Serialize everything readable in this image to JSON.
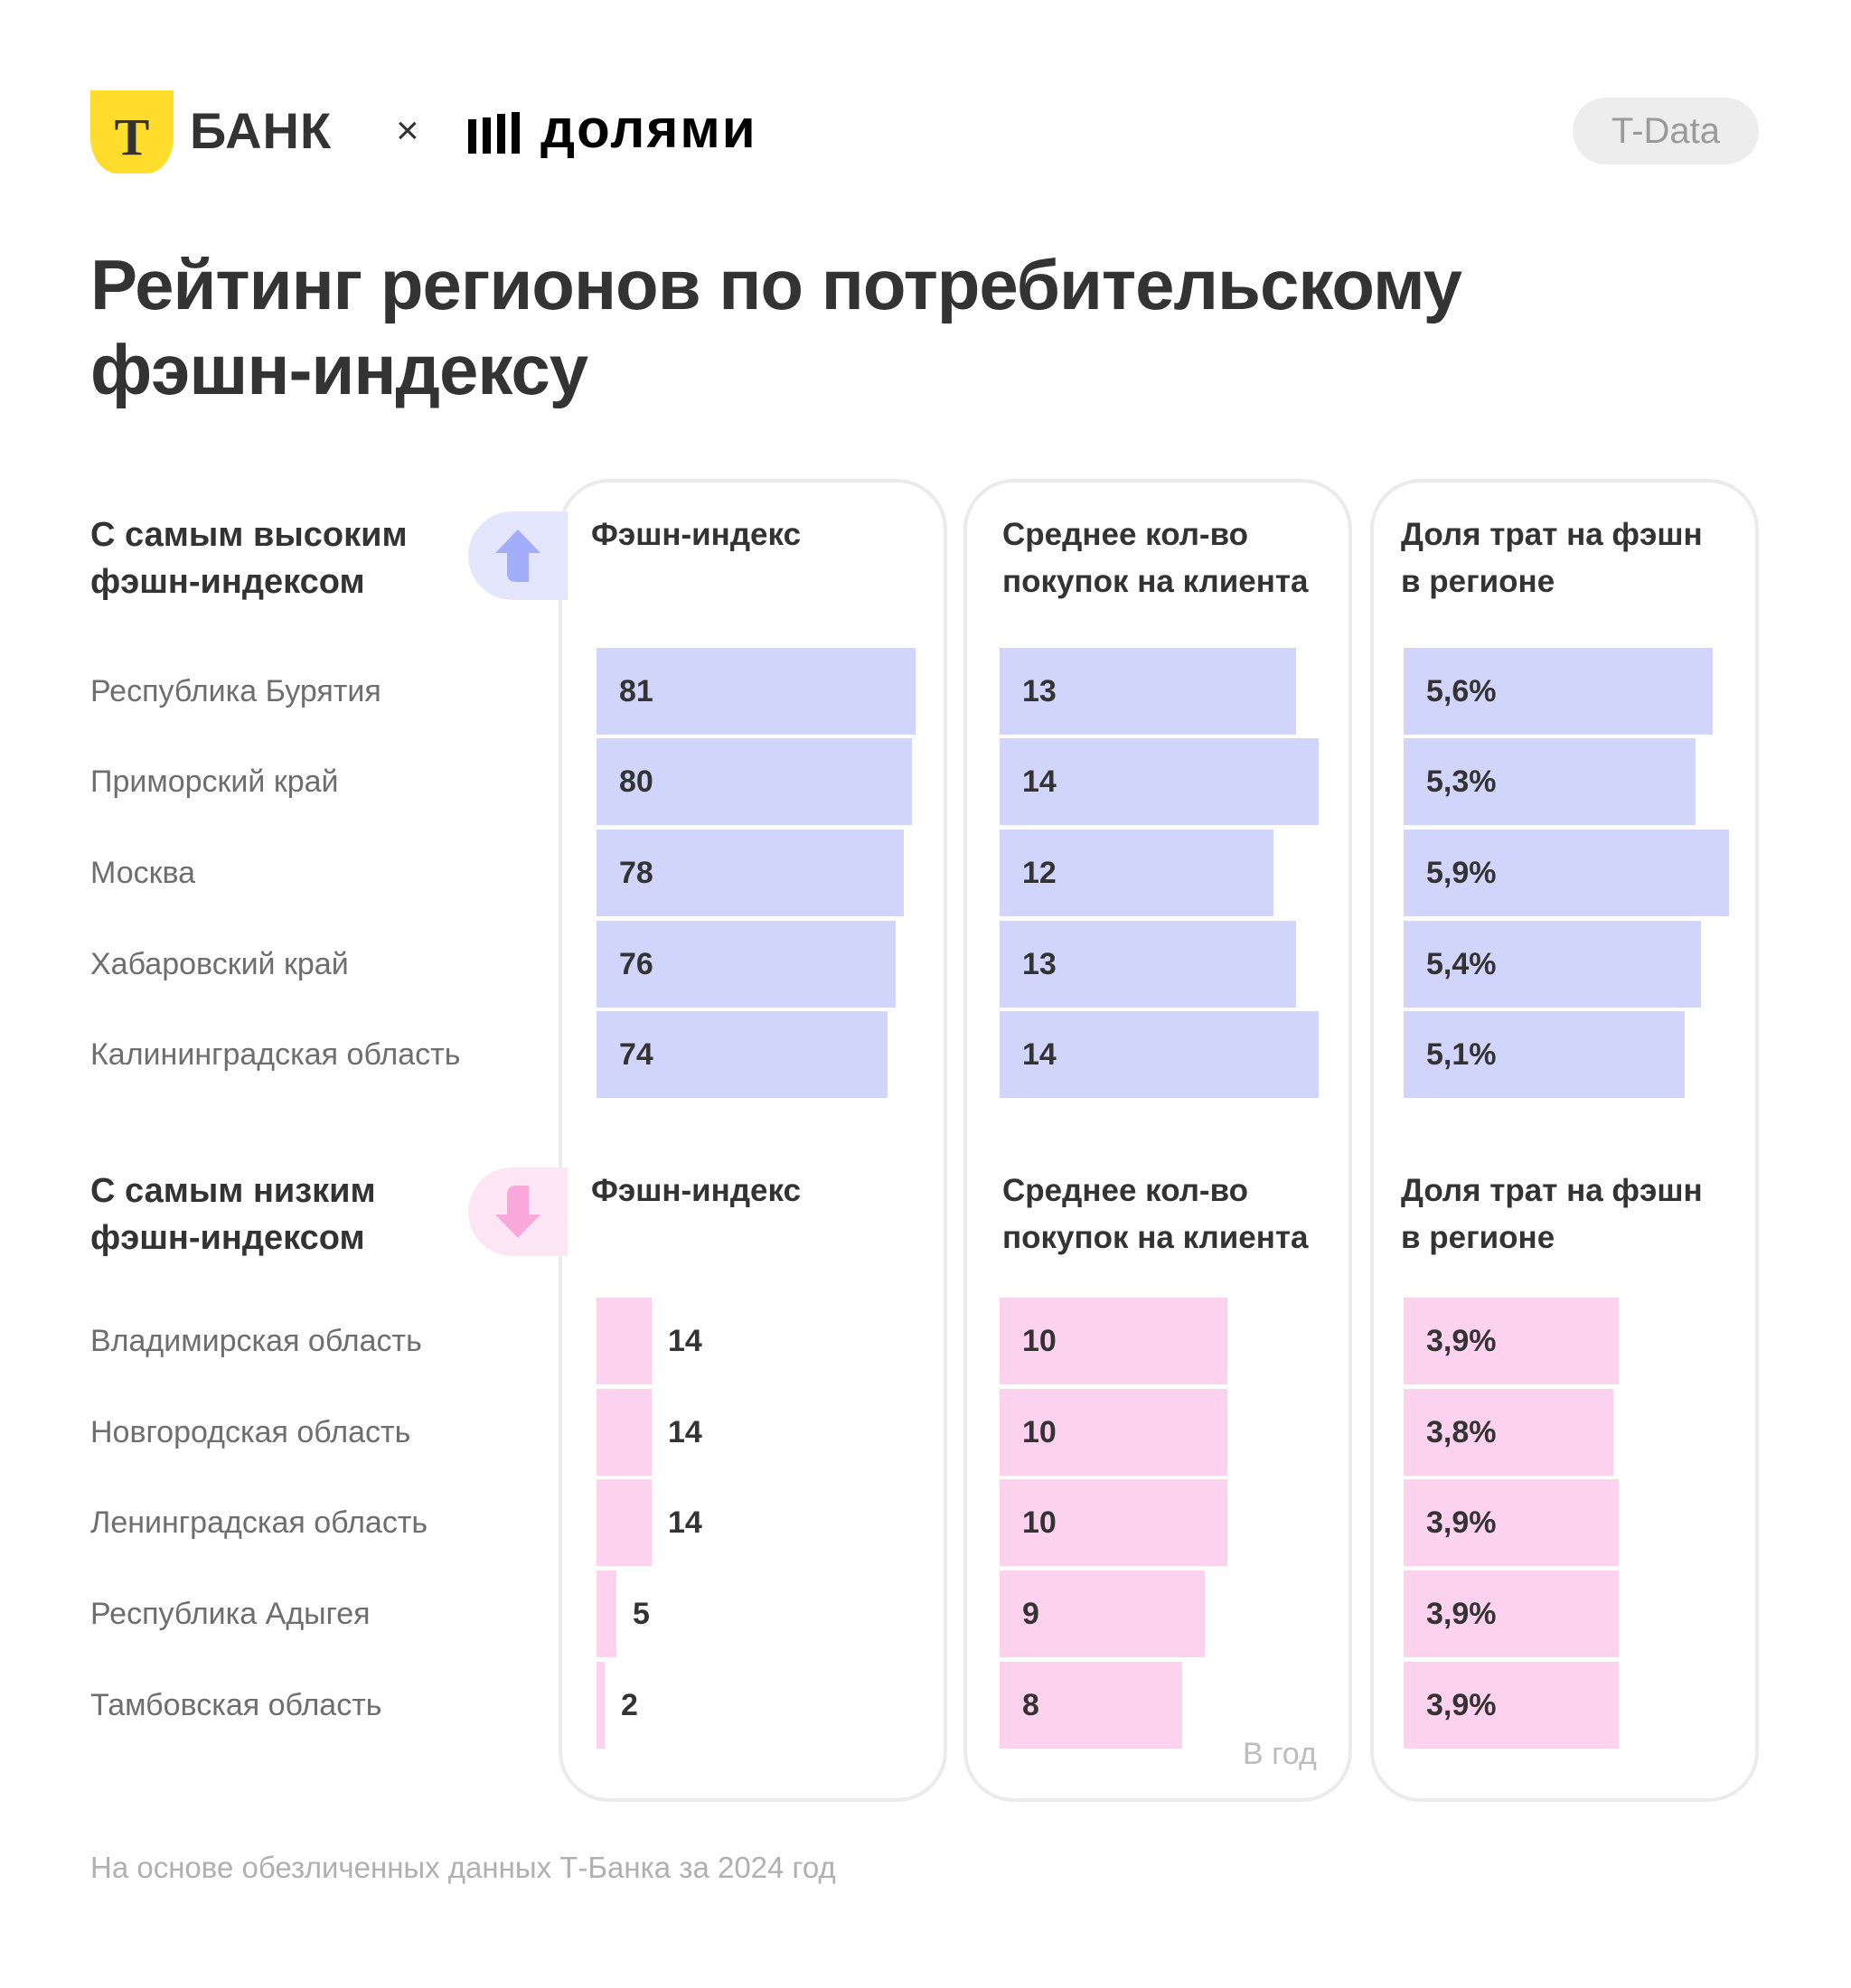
{
  "header": {
    "bank_logo_letter": "Т",
    "bank_name": "БАНК",
    "times_sign": "×",
    "partner_name": "долями",
    "badge": "T-Data"
  },
  "title": "Рейтинг регионов по потребительскому фэшн-индексу",
  "colors": {
    "top_bar": "#D1D5FB",
    "bottom_bar": "#FDD2EE",
    "top_pill": "#E3E6FC",
    "top_arrow": "#A3AEFB",
    "bottom_pill": "#FDE6F4",
    "bottom_arrow": "#F9A8DC",
    "brand_yellow": "#FFDD2D"
  },
  "columns": [
    "Фэшн-индекс",
    "Среднее кол-во покупок на клиента",
    "Доля трат на фэшн в регионе"
  ],
  "column_headers_lines": [
    [
      "Фэшн-индекс"
    ],
    [
      "Среднее кол-во",
      "покупок на клиента"
    ],
    [
      "Доля трат на фэшн",
      "в регионе"
    ]
  ],
  "note_per_year": "В год",
  "footer": "На основе обезличенных данных Т-Банка за 2024 год",
  "chart_data": [
    {
      "type": "bar",
      "title": "С самым высоким фэшн-индексом",
      "title_lines": [
        "С самым высоким",
        "фэшн-индексом"
      ],
      "direction_icon": "arrow-up-icon",
      "categories": [
        "Республика Бурятия",
        "Приморский край",
        "Москва",
        "Хабаровский край",
        "Калининградская область"
      ],
      "series": [
        {
          "name": "Фэшн-индекс",
          "values": [
            81,
            80,
            78,
            76,
            74
          ],
          "labels": [
            "81",
            "80",
            "78",
            "76",
            "74"
          ],
          "scale_max": 81
        },
        {
          "name": "Среднее кол-во покупок на клиента",
          "values": [
            13,
            14,
            12,
            13,
            14
          ],
          "labels": [
            "13",
            "14",
            "12",
            "13",
            "14"
          ],
          "scale_max": 14
        },
        {
          "name": "Доля трат на фэшн в регионе",
          "unit": "%",
          "values": [
            5.6,
            5.3,
            5.9,
            5.4,
            5.1
          ],
          "labels": [
            "5,6%",
            "5,3%",
            "5,9%",
            "5,4%",
            "5,1%"
          ],
          "scale_max": 5.9
        }
      ]
    },
    {
      "type": "bar",
      "title": "С самым низким фэшн-индексом",
      "title_lines": [
        "С самым низким",
        "фэшн-индексом"
      ],
      "direction_icon": "arrow-down-icon",
      "categories": [
        "Владимирская область",
        "Новгородская область",
        "Ленинградская область",
        "Республика Адыгея",
        "Тамбовская область"
      ],
      "series": [
        {
          "name": "Фэшн-индекс",
          "values": [
            14,
            14,
            14,
            5,
            2
          ],
          "labels": [
            "14",
            "14",
            "14",
            "5",
            "2"
          ],
          "scale_max": 81
        },
        {
          "name": "Среднее кол-во покупок на клиента",
          "values": [
            10,
            10,
            10,
            9,
            8
          ],
          "labels": [
            "10",
            "10",
            "10",
            "9",
            "8"
          ],
          "scale_max": 14
        },
        {
          "name": "Доля трат на фэшн в регионе",
          "unit": "%",
          "values": [
            3.9,
            3.8,
            3.9,
            3.9,
            3.9
          ],
          "labels": [
            "3,9%",
            "3,8%",
            "3,9%",
            "3,9%",
            "3,9%"
          ],
          "scale_max": 5.9
        }
      ]
    }
  ]
}
